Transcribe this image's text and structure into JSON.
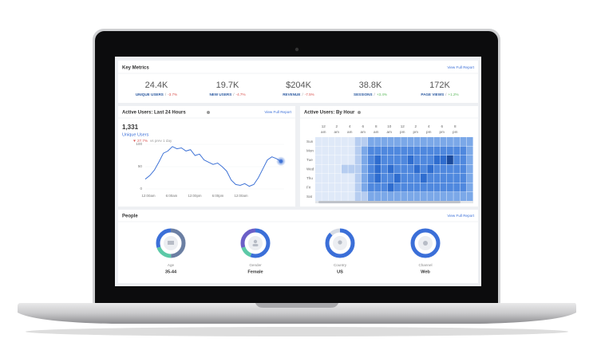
{
  "key_metrics": {
    "title": "Key Metrics",
    "link": "View Full Report",
    "separator": "/",
    "metrics": [
      {
        "value": "24.4K",
        "label": "UNIQUE USERS",
        "change": "-3.7%"
      },
      {
        "value": "19.7K",
        "label": "NEW USERS",
        "change": "-4.7%"
      },
      {
        "value": "$204K",
        "label": "REVENUE",
        "change": "-7.5%"
      },
      {
        "value": "38.8K",
        "label": "SESSIONS",
        "change": "+3.4%"
      },
      {
        "value": "172K",
        "label": "PAGE VIEWS",
        "change": "+1.2%"
      }
    ]
  },
  "active_users_24h": {
    "title": "Active Users: Last 24 Hours",
    "link": "View Full Report",
    "total": "1,331",
    "total_label": "Unique Users",
    "change": "27.7%",
    "comparison": "vs prev 1 day",
    "chart": {
      "type": "line",
      "color": "#3f73d6",
      "values": [
        22,
        30,
        42,
        60,
        80,
        85,
        95,
        90,
        92,
        85,
        88,
        75,
        78,
        65,
        60,
        55,
        58,
        50,
        40,
        20,
        10,
        8,
        12,
        6,
        10,
        25,
        45,
        65,
        72,
        68,
        62
      ],
      "ylim": [
        0,
        100
      ],
      "yticks": [
        0,
        50,
        100
      ],
      "x_labels": [
        "12:00am",
        "6:00am",
        "12:00pm",
        "6:00pm",
        "12:00am"
      ]
    }
  },
  "active_users_by_hour": {
    "title": "Active Users: By Hour",
    "hours": [
      {
        "hour": "12",
        "period": "am"
      },
      {
        "hour": "2",
        "period": "am"
      },
      {
        "hour": "4",
        "period": "am"
      },
      {
        "hour": "6",
        "period": "am"
      },
      {
        "hour": "8",
        "period": "am"
      },
      {
        "hour": "10",
        "period": "am"
      },
      {
        "hour": "12",
        "period": "pm"
      },
      {
        "hour": "2",
        "period": "pm"
      },
      {
        "hour": "4",
        "period": "pm"
      },
      {
        "hour": "6",
        "period": "pm"
      },
      {
        "hour": "8",
        "period": "pm"
      }
    ],
    "days": [
      "Sun",
      "Mon",
      "Tue",
      "Wed",
      "Thu",
      "Fri",
      "Sat"
    ],
    "levels": [
      [
        0,
        0,
        0,
        0,
        0,
        0,
        1,
        1,
        2,
        2,
        2,
        2,
        2,
        2,
        2,
        2,
        2,
        2,
        2,
        2,
        2,
        2,
        2,
        2
      ],
      [
        0,
        0,
        0,
        0,
        0,
        0,
        1,
        2,
        3,
        3,
        3,
        3,
        3,
        3,
        3,
        3,
        3,
        3,
        3,
        3,
        3,
        3,
        3,
        2
      ],
      [
        0,
        0,
        0,
        0,
        0,
        0,
        1,
        2,
        3,
        4,
        3,
        3,
        3,
        3,
        4,
        3,
        3,
        3,
        4,
        4,
        5,
        3,
        3,
        2
      ],
      [
        0,
        0,
        0,
        0,
        1,
        1,
        1,
        2,
        3,
        4,
        3,
        4,
        3,
        3,
        3,
        4,
        3,
        4,
        3,
        3,
        3,
        3,
        3,
        2
      ],
      [
        0,
        0,
        0,
        0,
        0,
        0,
        1,
        2,
        3,
        4,
        3,
        3,
        4,
        3,
        3,
        3,
        4,
        3,
        3,
        3,
        3,
        3,
        3,
        2
      ],
      [
        0,
        0,
        0,
        0,
        0,
        0,
        1,
        2,
        3,
        3,
        3,
        4,
        3,
        3,
        3,
        3,
        3,
        3,
        3,
        3,
        3,
        3,
        3,
        2
      ],
      [
        0,
        0,
        0,
        0,
        0,
        0,
        1,
        1,
        2,
        2,
        2,
        2,
        2,
        2,
        2,
        2,
        2,
        2,
        2,
        2,
        2,
        2,
        2,
        2
      ]
    ]
  },
  "people": {
    "title": "People",
    "link": "View Full Report",
    "items": [
      {
        "label": "Age",
        "value": "35-44"
      },
      {
        "label": "Gender",
        "value": "Female"
      },
      {
        "label": "Country",
        "value": "US"
      },
      {
        "label": "Channel",
        "value": "Web"
      }
    ]
  }
}
